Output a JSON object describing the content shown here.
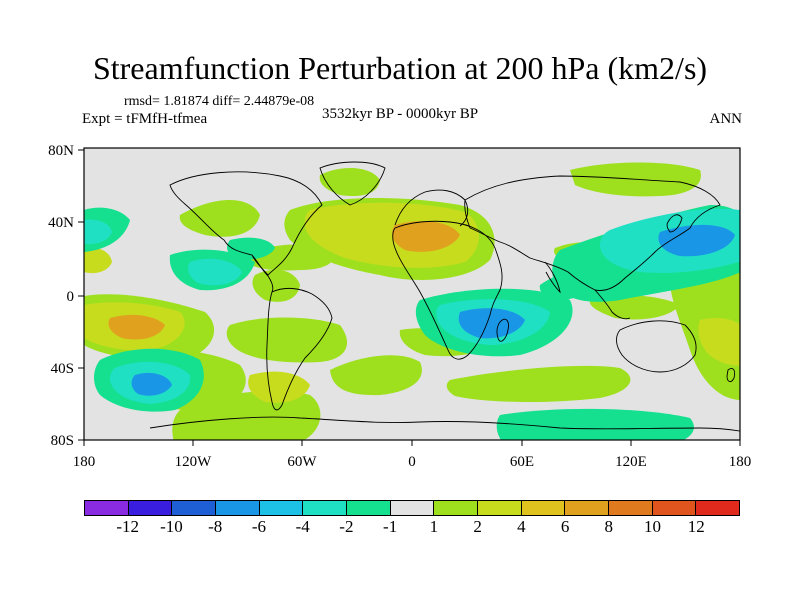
{
  "figure": {
    "title": "Streamfunction Perturbation at 200 hPa (km2/s)",
    "stats_line": "rmsd= 1.81874 diff= 2.44879e-08",
    "experiment_label": "Expt = tFMfH-tfmea",
    "period_label": "3532kyr BP - 0000kyr BP",
    "season_label": "ANN"
  },
  "axes": {
    "lat_ticks": [
      "80N",
      "40N",
      "0",
      "40S",
      "80S"
    ],
    "lon_ticks": [
      "180",
      "120W",
      "60W",
      "0",
      "60E",
      "120E",
      "180"
    ]
  },
  "colorbar": {
    "colors": [
      "#8a2be2",
      "#3a1ee0",
      "#1e5fd6",
      "#1a96e6",
      "#1ec1e6",
      "#20e0c4",
      "#15e08f",
      "#e3e3e3",
      "#9ee01e",
      "#c8dc1e",
      "#e0c21e",
      "#e0a21e",
      "#e07a1e",
      "#e0541e",
      "#e02a1e"
    ],
    "labels": [
      "-12",
      "-10",
      "-8",
      "-6",
      "-4",
      "-2",
      "-1",
      "1",
      "2",
      "4",
      "6",
      "8",
      "10",
      "12"
    ]
  },
  "field": {
    "background": "#e3e3e3",
    "levels": [
      {
        "level": "2",
        "color": "#9ee01e"
      },
      {
        "level": "4",
        "color": "#c8dc1e"
      },
      {
        "level": "6",
        "color": "#e0a21e"
      },
      {
        "level": "-1",
        "color": "#15e08f"
      },
      {
        "level": "-2",
        "color": "#20e0c4"
      },
      {
        "level": "-4",
        "color": "#1a96e6"
      }
    ]
  }
}
